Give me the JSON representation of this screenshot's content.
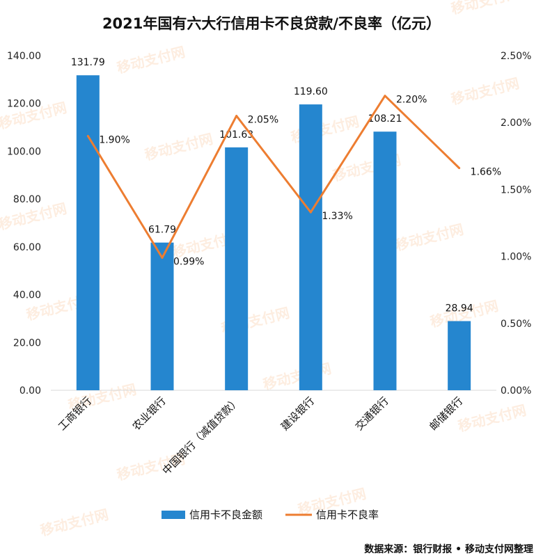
{
  "chart_data": {
    "type": "bar+line",
    "title": "2021年国有六大行信用卡不良贷款/不良率（亿元）",
    "categories": [
      "工商银行",
      "农业银行",
      "中国银行（减值贷款）",
      "建设银行",
      "交通银行",
      "邮储银行"
    ],
    "series": [
      {
        "name": "信用卡不良金额",
        "type": "bar",
        "axis": "left",
        "values": [
          131.79,
          61.79,
          101.63,
          119.6,
          108.21,
          28.94
        ],
        "labels": [
          "131.79",
          "61.79",
          "101.63",
          "119.60",
          "108.21",
          "28.94"
        ]
      },
      {
        "name": "信用卡不良率",
        "type": "line",
        "axis": "right",
        "values": [
          1.9,
          0.99,
          2.05,
          1.33,
          2.2,
          1.66
        ],
        "labels": [
          "1.90%",
          "0.99%",
          "2.05%",
          "1.33%",
          "2.20%",
          "1.66%"
        ]
      }
    ],
    "left_axis": {
      "range": [
        0,
        140
      ],
      "ticks": [
        "0.00",
        "20.00",
        "40.00",
        "60.00",
        "80.00",
        "100.00",
        "120.00",
        "140.00"
      ]
    },
    "right_axis": {
      "range": [
        0,
        2.5
      ],
      "ticks": [
        "0.00%",
        "0.50%",
        "1.00%",
        "1.50%",
        "2.00%",
        "2.50%"
      ]
    },
    "grid": false,
    "legend_position": "bottom",
    "colors": {
      "bar": "#2586CF",
      "line": "#ED7D31"
    }
  },
  "source_text": "数据来源：银行财报 • 移动支付网整理",
  "watermark_text": "移动支付网"
}
